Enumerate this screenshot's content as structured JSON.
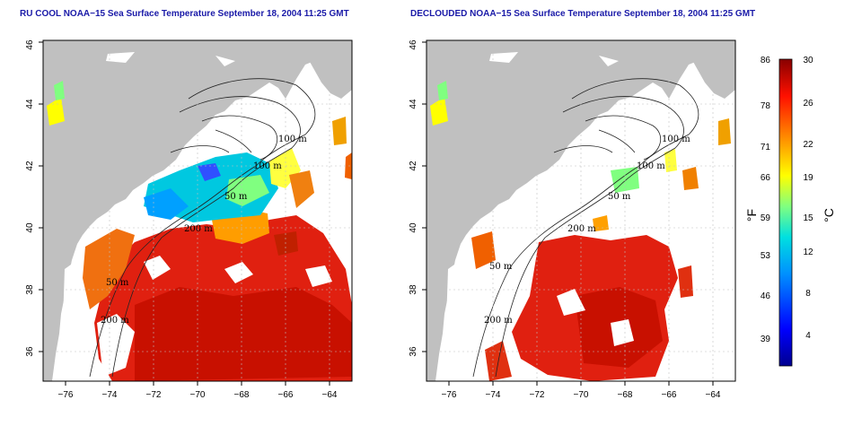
{
  "maps": [
    {
      "title": "RU COOL NOAA−15 Sea Surface Temperature September 18, 2004 11:25 GMT",
      "x_ticks": [
        "−76",
        "−74",
        "−72",
        "−70",
        "−68",
        "−66",
        "−64"
      ],
      "y_ticks": [
        "36",
        "38",
        "40",
        "42",
        "44",
        "46"
      ],
      "contour_labels": [
        "100 m",
        "100 m",
        "50 m",
        "200 m",
        "200 m",
        "50 m"
      ]
    },
    {
      "title": "DECLOUDED NOAA−15 Sea Surface Temperature September 18, 2004 11:25 GMT",
      "x_ticks": [
        "−76",
        "−74",
        "−72",
        "−70",
        "−68",
        "−66",
        "−64"
      ],
      "y_ticks": [
        "36",
        "38",
        "40",
        "42",
        "44",
        "46"
      ],
      "contour_labels": [
        "100 m",
        "100 m",
        "50 m",
        "200 m",
        "50 m",
        "200 m"
      ]
    }
  ],
  "colorbar": {
    "fahrenheit_label": "°F",
    "celsius_label": "°C",
    "fahrenheit_ticks": [
      "86",
      "78",
      "71",
      "66",
      "59",
      "53",
      "46",
      "39"
    ],
    "celsius_ticks": [
      "30",
      "26",
      "22",
      "19",
      "15",
      "12",
      "8",
      "4"
    ],
    "colors": [
      "#00008f",
      "#0000ff",
      "#0080ff",
      "#00ffff",
      "#80ff80",
      "#ffff00",
      "#ff8000",
      "#ff0000",
      "#800000"
    ]
  },
  "colors": {
    "land": "#c0c0c0",
    "title": "#1a1aa8",
    "warm": "#e02010",
    "grid": "#bfbfbf"
  }
}
